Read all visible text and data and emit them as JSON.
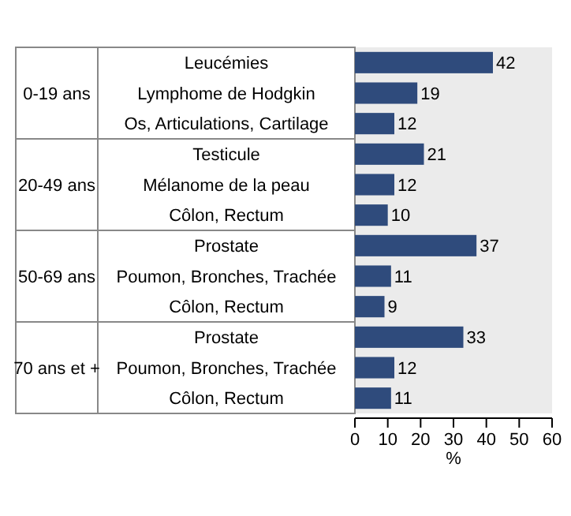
{
  "chart_data": {
    "type": "bar",
    "orientation": "horizontal",
    "xlabel": "%",
    "categories": [
      "Leucémies",
      "Lymphome de Hodgkin",
      "Os, Articulations, Cartilage",
      "Testicule",
      "Mélanome de la peau",
      "Côlon, Rectum",
      "Prostate",
      "Poumon, Bronches, Trachée",
      "Côlon, Rectum",
      "Prostate",
      "Poumon, Bronches, Trachée",
      "Côlon, Rectum"
    ],
    "values": [
      42,
      19,
      12,
      21,
      12,
      10,
      37,
      11,
      9,
      33,
      12,
      11
    ],
    "color": "#2f4b7c",
    "data_labels": true,
    "xlim": [
      0,
      60
    ],
    "xticks": [
      0,
      10,
      20,
      30,
      40,
      50,
      60
    ],
    "grid": false,
    "annotations": [
      "0-19 ans",
      "20-49 ans",
      "50-69 ans",
      "70 ans et +"
    ]
  }
}
